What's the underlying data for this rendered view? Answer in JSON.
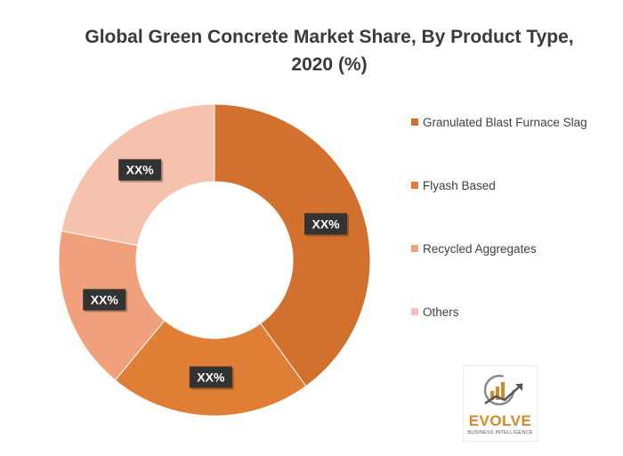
{
  "chart_data": {
    "type": "pie",
    "variant": "donut",
    "title": "Global  Green Concrete Market Share, By  Product Type,\n2020 (%)",
    "categories": [
      "Granulated Blast Furnace Slag",
      "Flyash Based",
      "Recycled Aggregates",
      "Others"
    ],
    "values": [
      40,
      21,
      17,
      22
    ],
    "data_labels": [
      "XX%",
      "XX%",
      "XX%",
      "XX%"
    ],
    "colors": [
      "#D2702E",
      "#E07E35",
      "#F0A07A",
      "#F6C2AE"
    ],
    "legend_position": "right"
  },
  "logo": {
    "brand": "EVOLVE",
    "tagline": "BUSINESS INTELLIGENCE"
  }
}
